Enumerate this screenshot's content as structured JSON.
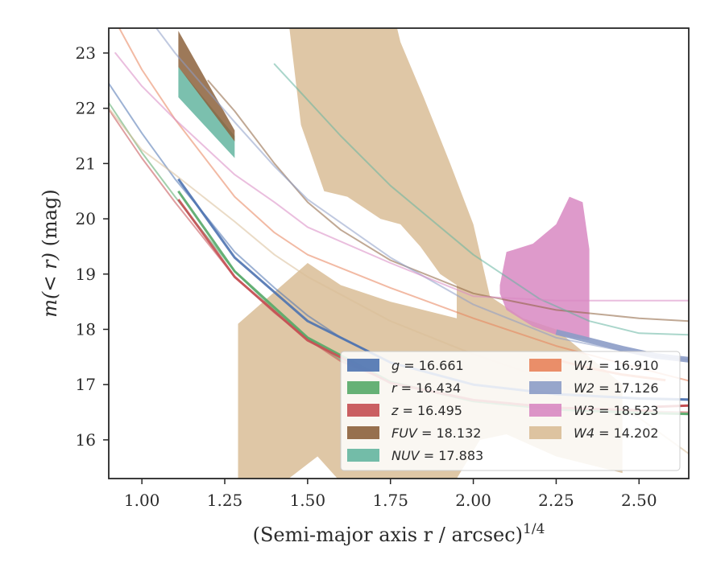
{
  "chart_data": {
    "type": "line",
    "title": "",
    "xlabel": {
      "main": "(Semi-major axis r / arcsec)",
      "exponent": "1/4"
    },
    "ylabel": {
      "prefix": "m(< r)",
      "suffix": " (mag)"
    },
    "xlim": [
      0.9,
      2.65
    ],
    "ylim": [
      23.45,
      15.3
    ],
    "y_inverted": true,
    "xticks": [
      1.0,
      1.25,
      1.5,
      1.75,
      2.0,
      2.25,
      2.5
    ],
    "xtick_labels": [
      "1.00",
      "1.25",
      "1.50",
      "1.75",
      "2.00",
      "2.25",
      "2.50"
    ],
    "yticks": [
      16,
      17,
      18,
      19,
      20,
      21,
      22,
      23
    ],
    "ytick_labels": [
      "16",
      "17",
      "18",
      "19",
      "20",
      "21",
      "22",
      "23"
    ],
    "grid": false,
    "legend": {
      "placement": "bottom-right",
      "columns": 2
    },
    "series": [
      {
        "name": "g = 16.661",
        "band": "g",
        "value": "16.661",
        "color": "#4C72B0",
        "model": [
          [
            0.9,
            22.45
          ],
          [
            1.0,
            21.55
          ],
          [
            1.1,
            20.72
          ],
          [
            1.2,
            20.0
          ],
          [
            1.28,
            19.4
          ],
          [
            1.4,
            18.75
          ],
          [
            1.5,
            18.25
          ],
          [
            1.6,
            17.85
          ],
          [
            1.75,
            17.4
          ],
          [
            2.0,
            17.0
          ],
          [
            2.25,
            16.82
          ],
          [
            2.5,
            16.74
          ],
          [
            2.65,
            16.72
          ]
        ],
        "profile": [
          [
            1.11,
            20.72
          ],
          [
            1.28,
            19.3
          ],
          [
            1.5,
            18.15
          ],
          [
            1.75,
            17.4
          ],
          [
            2.0,
            17.0
          ],
          [
            2.25,
            16.83
          ],
          [
            2.5,
            16.75
          ],
          [
            2.65,
            16.73
          ]
        ],
        "profile_err": 0.05
      },
      {
        "name": "r = 16.434",
        "band": "r",
        "value": "16.434",
        "color": "#55A868",
        "model": [
          [
            0.9,
            22.1
          ],
          [
            1.0,
            21.2
          ],
          [
            1.1,
            20.4
          ],
          [
            1.2,
            19.65
          ],
          [
            1.28,
            19.05
          ],
          [
            1.4,
            18.35
          ],
          [
            1.5,
            17.85
          ],
          [
            1.6,
            17.45
          ],
          [
            1.75,
            17.05
          ],
          [
            2.0,
            16.7
          ],
          [
            2.25,
            16.55
          ],
          [
            2.5,
            16.48
          ],
          [
            2.65,
            16.46
          ]
        ],
        "profile": [
          [
            1.11,
            20.5
          ],
          [
            1.28,
            19.05
          ],
          [
            1.5,
            17.85
          ],
          [
            1.75,
            17.05
          ],
          [
            2.0,
            16.7
          ],
          [
            2.25,
            16.55
          ],
          [
            2.5,
            16.49
          ],
          [
            2.65,
            16.47
          ]
        ],
        "profile_err": 0.05
      },
      {
        "name": "z = 16.495",
        "band": "z",
        "value": "16.495",
        "color": "#C44E52",
        "model": [
          [
            0.9,
            21.98
          ],
          [
            1.0,
            21.1
          ],
          [
            1.1,
            20.3
          ],
          [
            1.2,
            19.55
          ],
          [
            1.28,
            18.95
          ],
          [
            1.4,
            18.3
          ],
          [
            1.5,
            17.82
          ],
          [
            1.6,
            17.42
          ],
          [
            1.75,
            17.05
          ],
          [
            2.0,
            16.72
          ],
          [
            2.25,
            16.58
          ],
          [
            2.5,
            16.52
          ],
          [
            2.65,
            16.5
          ]
        ],
        "profile": [
          [
            1.11,
            20.35
          ],
          [
            1.28,
            18.95
          ],
          [
            1.5,
            17.8
          ],
          [
            1.75,
            17.03
          ],
          [
            2.0,
            16.72
          ],
          [
            2.25,
            16.58
          ],
          [
            2.54,
            16.53
          ]
        ],
        "profile_end": [
          [
            2.55,
            16.6
          ],
          [
            2.65,
            16.62
          ]
        ],
        "profile_err": 0.05
      },
      {
        "name": "FUV = 18.132",
        "band": "FUV",
        "value": "18.132",
        "color": "#8C613C",
        "model": [
          [
            1.2,
            22.5
          ],
          [
            1.28,
            21.95
          ],
          [
            1.4,
            21.0
          ],
          [
            1.5,
            20.3
          ],
          [
            1.6,
            19.8
          ],
          [
            1.75,
            19.25
          ],
          [
            2.0,
            18.65
          ],
          [
            2.25,
            18.35
          ],
          [
            2.5,
            18.2
          ],
          [
            2.65,
            18.15
          ]
        ],
        "band_upper": [
          [
            1.11,
            22.75
          ],
          [
            1.28,
            21.4
          ]
        ],
        "band_lower": [
          [
            1.11,
            23.4
          ],
          [
            1.28,
            21.6
          ]
        ]
      },
      {
        "name": "NUV = 17.883",
        "band": "NUV",
        "value": "17.883",
        "color": "#64B5A0",
        "model": [
          [
            1.4,
            22.8
          ],
          [
            1.5,
            22.15
          ],
          [
            1.6,
            21.5
          ],
          [
            1.75,
            20.6
          ],
          [
            2.0,
            19.35
          ],
          [
            2.2,
            18.55
          ],
          [
            2.35,
            18.15
          ],
          [
            2.5,
            17.93
          ],
          [
            2.65,
            17.9
          ]
        ],
        "band_upper": [
          [
            1.11,
            22.2
          ],
          [
            1.28,
            21.1
          ]
        ],
        "band_lower": [
          [
            1.11,
            22.75
          ],
          [
            1.28,
            21.5
          ]
        ]
      },
      {
        "name": "W1 = 16.910",
        "band": "W1",
        "value": "16.910",
        "color": "#E8825A",
        "model": [
          [
            0.9,
            23.8
          ],
          [
            1.0,
            22.7
          ],
          [
            1.1,
            21.8
          ],
          [
            1.28,
            20.4
          ],
          [
            1.4,
            19.75
          ],
          [
            1.5,
            19.35
          ],
          [
            1.75,
            18.75
          ],
          [
            2.0,
            18.2
          ],
          [
            2.25,
            17.7
          ],
          [
            2.5,
            17.3
          ],
          [
            2.65,
            17.07
          ]
        ],
        "profile": [
          [
            2.25,
            17.45
          ],
          [
            2.35,
            17.3
          ],
          [
            2.45,
            17.18
          ],
          [
            2.58,
            17.08
          ]
        ],
        "profile_err": 0.03
      },
      {
        "name": "W2 = 17.126",
        "band": "W2",
        "value": "17.126",
        "color": "#8C9CC6",
        "model": [
          [
            1.0,
            23.8
          ],
          [
            1.1,
            23.0
          ],
          [
            1.28,
            21.75
          ],
          [
            1.4,
            20.95
          ],
          [
            1.5,
            20.35
          ],
          [
            1.75,
            19.3
          ],
          [
            2.0,
            18.45
          ],
          [
            2.25,
            17.85
          ],
          [
            2.5,
            17.55
          ],
          [
            2.65,
            17.45
          ]
        ],
        "profile": [
          [
            2.25,
            17.95
          ],
          [
            2.35,
            17.8
          ],
          [
            2.45,
            17.65
          ],
          [
            2.55,
            17.52
          ],
          [
            2.65,
            17.45
          ]
        ],
        "profile_err": 0.08
      },
      {
        "name": "W3 = 18.523",
        "band": "W3",
        "value": "18.523",
        "color": "#D888C2",
        "model": [
          [
            0.92,
            23.0
          ],
          [
            1.0,
            22.4
          ],
          [
            1.1,
            21.8
          ],
          [
            1.28,
            20.8
          ],
          [
            1.4,
            20.3
          ],
          [
            1.5,
            19.85
          ],
          [
            1.75,
            19.2
          ],
          [
            2.0,
            18.6
          ],
          [
            2.25,
            18.52
          ],
          [
            2.65,
            18.52
          ]
        ],
        "band_upper": [
          [
            2.08,
            18.65
          ],
          [
            2.1,
            18.35
          ],
          [
            2.18,
            18.05
          ],
          [
            2.25,
            17.9
          ],
          [
            2.35,
            17.8
          ]
        ],
        "band_lower": [
          [
            2.35,
            19.45
          ],
          [
            2.33,
            20.3
          ],
          [
            2.29,
            20.4
          ],
          [
            2.25,
            19.9
          ],
          [
            2.18,
            19.55
          ],
          [
            2.1,
            19.4
          ],
          [
            2.08,
            18.8
          ]
        ]
      },
      {
        "name": "W4 = 14.202",
        "band": "W4",
        "value": "14.202",
        "color": "#D9BD97",
        "model": [
          [
            0.9,
            22.0
          ],
          [
            1.0,
            21.25
          ],
          [
            1.1,
            20.8
          ],
          [
            1.28,
            19.95
          ],
          [
            1.4,
            19.35
          ],
          [
            1.5,
            18.95
          ],
          [
            1.75,
            18.15
          ],
          [
            2.0,
            17.55
          ],
          [
            2.25,
            17.05
          ],
          [
            2.5,
            16.4
          ],
          [
            2.65,
            15.75
          ]
        ],
        "band_upper": [
          [
            1.29,
            15.1
          ],
          [
            1.4,
            15.1
          ],
          [
            1.53,
            15.7
          ],
          [
            1.62,
            15.1
          ],
          [
            1.93,
            15.1
          ],
          [
            2.02,
            16.0
          ],
          [
            2.1,
            16.1
          ],
          [
            2.25,
            15.7
          ],
          [
            2.45,
            15.4
          ],
          [
            2.45,
            17.0
          ]
        ],
        "band_lower": [
          [
            2.45,
            17.0
          ],
          [
            2.35,
            17.5
          ],
          [
            2.25,
            18.0
          ],
          [
            2.15,
            18.2
          ],
          [
            2.05,
            18.6
          ],
          [
            2.0,
            19.9
          ],
          [
            1.93,
            21.0
          ],
          [
            1.85,
            22.2
          ],
          [
            1.78,
            23.2
          ],
          [
            1.76,
            23.7
          ],
          [
            1.44,
            23.7
          ],
          [
            1.48,
            21.7
          ],
          [
            1.55,
            20.5
          ],
          [
            1.62,
            20.4
          ],
          [
            1.72,
            20.0
          ],
          [
            1.78,
            19.9
          ],
          [
            1.84,
            19.5
          ],
          [
            1.9,
            19.0
          ],
          [
            1.95,
            18.8
          ],
          [
            1.95,
            18.2
          ],
          [
            1.75,
            18.5
          ],
          [
            1.6,
            18.8
          ],
          [
            1.5,
            19.2
          ],
          [
            1.29,
            18.1
          ]
        ],
        "band_lower_cut": [
          [
            1.29,
            23.7
          ]
        ]
      }
    ]
  }
}
